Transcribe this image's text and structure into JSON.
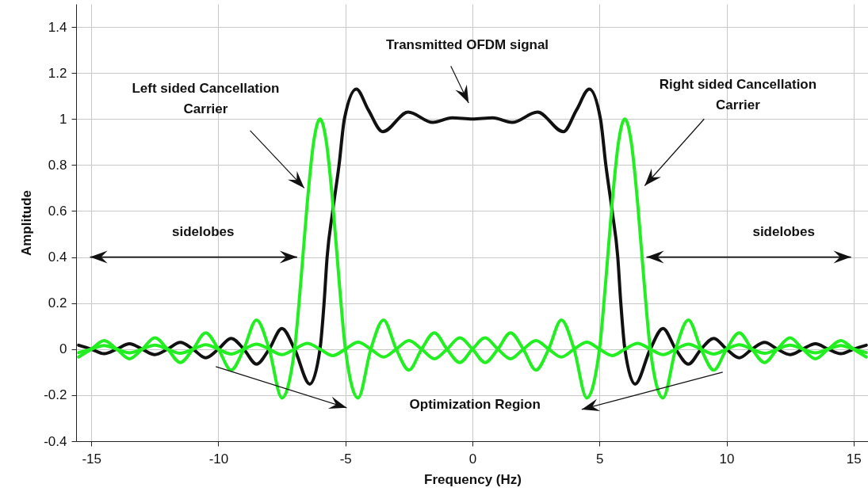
{
  "chart_data": {
    "type": "line",
    "xlabel": "Frequency (Hz)",
    "ylabel": "Amplitude",
    "xlim": [
      -15.6,
      15.6
    ],
    "ylim": [
      -0.4,
      1.5
    ],
    "xticks": [
      -15,
      -10,
      -5,
      0,
      5,
      10,
      15
    ],
    "yticks": [
      -0.4,
      -0.2,
      0,
      0.2,
      0.4,
      0.6,
      0.8,
      1,
      1.2,
      1.4
    ],
    "grid": true,
    "marker": "none",
    "line_style": "solid",
    "annotations": [
      "Transmitted OFDM signal",
      "Left sided Cancellation\nCarrier",
      "Right sided Cancellation\nCarrier",
      "sidelobes",
      "sidelobes",
      "Optimization Region"
    ],
    "series": [
      {
        "color": "#111111",
        "x": [
          -15.5,
          -15,
          -14.5,
          -14,
          -13.5,
          -13,
          -12.5,
          -12,
          -11.5,
          -11,
          -10.5,
          -10,
          -9.5,
          -9,
          -8.5,
          -8,
          -7.5,
          -7,
          -6.4,
          -6,
          -5.84,
          -5.72,
          -5.5,
          -5.25,
          -5.04,
          -4.57,
          -4.1,
          -3.53,
          -2.53,
          -1.56,
          -0.8,
          0,
          0.8,
          1.56,
          2.56,
          3.58,
          4.1,
          4.6,
          5.04,
          5.25,
          5.5,
          5.72,
          5.84,
          6,
          6.4,
          7,
          7.5,
          8,
          8.5,
          9,
          9.5,
          10,
          10.5,
          11,
          11.5,
          12,
          12.5,
          13,
          13.5,
          14,
          14.5,
          15,
          15.5
        ],
        "values": [
          0.017,
          0,
          -0.02,
          0,
          0.023,
          0,
          -0.024,
          0,
          0.029,
          0,
          -0.038,
          0,
          0.047,
          0,
          -0.065,
          0,
          0.09,
          0,
          -0.152,
          0,
          0.2,
          0.4,
          0.6,
          0.8,
          1.0,
          1.13,
          1.04,
          0.945,
          1.03,
          0.985,
          1.005,
          1.0,
          1.005,
          0.985,
          1.03,
          0.945,
          1.04,
          1.13,
          1.0,
          0.8,
          0.6,
          0.4,
          0.2,
          0,
          -0.152,
          0,
          0.09,
          0,
          -0.065,
          0,
          0.047,
          0,
          -0.038,
          0,
          0.029,
          0,
          -0.024,
          0,
          0.023,
          0,
          -0.02,
          0,
          0.017
        ]
      },
      {
        "color": "#22ee22",
        "x": [
          -15.5,
          -15,
          -14.5,
          -14,
          -13.5,
          -13,
          -12.5,
          -12,
          -11.5,
          -11,
          -10.5,
          -10,
          -9.5,
          -9,
          -8.5,
          -8,
          -7.5,
          -7,
          -6.75,
          -6.5,
          -6.25,
          -6,
          -5.75,
          -5.5,
          -5.25,
          -5,
          -4.5,
          -4,
          -3.5,
          -3,
          -2.5,
          -2,
          -1.5,
          -1,
          -0.5,
          0,
          0.5,
          1,
          1.5,
          2,
          2.5,
          3,
          3.5,
          4,
          4.5,
          5,
          5.5,
          6,
          6.5,
          7,
          7.5,
          8,
          8.5,
          9,
          9.5,
          10,
          10.5,
          11,
          11.5,
          12,
          12.5,
          13,
          13.5,
          14,
          14.5,
          15,
          15.5
        ],
        "values": [
          -0.034,
          0,
          0.037,
          0,
          -0.042,
          0,
          0.049,
          0,
          -0.058,
          0,
          0.071,
          0,
          -0.091,
          0,
          0.127,
          0,
          -0.212,
          0,
          0.3,
          0.637,
          0.9,
          1,
          0.9,
          0.637,
          0.3,
          0,
          -0.212,
          0,
          0.127,
          0,
          -0.091,
          0,
          0.071,
          0,
          -0.058,
          0,
          0.049,
          0,
          -0.042,
          0,
          0.037,
          0,
          -0.034,
          0,
          0.03,
          0,
          -0.028,
          0,
          0.025,
          0,
          -0.024,
          0,
          0.022,
          0,
          -0.021,
          0,
          0.019,
          0,
          -0.018,
          0,
          0.017,
          0,
          -0.016,
          0,
          0.016,
          0,
          -0.015
        ]
      },
      {
        "color": "#22ee22",
        "x": [
          -15.5,
          -15,
          -14.5,
          -14,
          -13.5,
          -13,
          -12.5,
          -12,
          -11.5,
          -11,
          -10.5,
          -10,
          -9.5,
          -9,
          -8.5,
          -8,
          -7.5,
          -7,
          -6.5,
          -6,
          -5.5,
          -5,
          -4.5,
          -4,
          -3.5,
          -3,
          -2.5,
          -2,
          -1.5,
          -1,
          -0.5,
          0,
          0.5,
          1,
          1.5,
          2,
          2.5,
          3,
          3.5,
          4,
          4.5,
          5,
          5.25,
          5.5,
          5.75,
          6,
          6.25,
          6.5,
          6.75,
          7,
          7.5,
          8,
          8.5,
          9,
          9.5,
          10,
          10.5,
          11,
          11.5,
          12,
          12.5,
          13,
          13.5,
          14,
          14.5,
          15,
          15.5
        ],
        "values": [
          -0.015,
          0,
          0.016,
          0,
          -0.016,
          0,
          0.017,
          0,
          -0.018,
          0,
          0.019,
          0,
          -0.021,
          0,
          0.022,
          0,
          -0.024,
          0,
          0.025,
          0,
          -0.028,
          0,
          0.03,
          0,
          -0.034,
          0,
          0.037,
          0,
          -0.042,
          0,
          0.049,
          0,
          -0.058,
          0,
          0.071,
          0,
          -0.091,
          0,
          0.127,
          0,
          -0.212,
          0,
          0.3,
          0.637,
          0.9,
          1,
          0.9,
          0.637,
          0.3,
          0,
          -0.212,
          0,
          0.127,
          0,
          -0.091,
          0,
          0.071,
          0,
          -0.058,
          0,
          0.049,
          0,
          -0.042,
          0,
          0.037,
          0,
          -0.034
        ]
      }
    ]
  }
}
